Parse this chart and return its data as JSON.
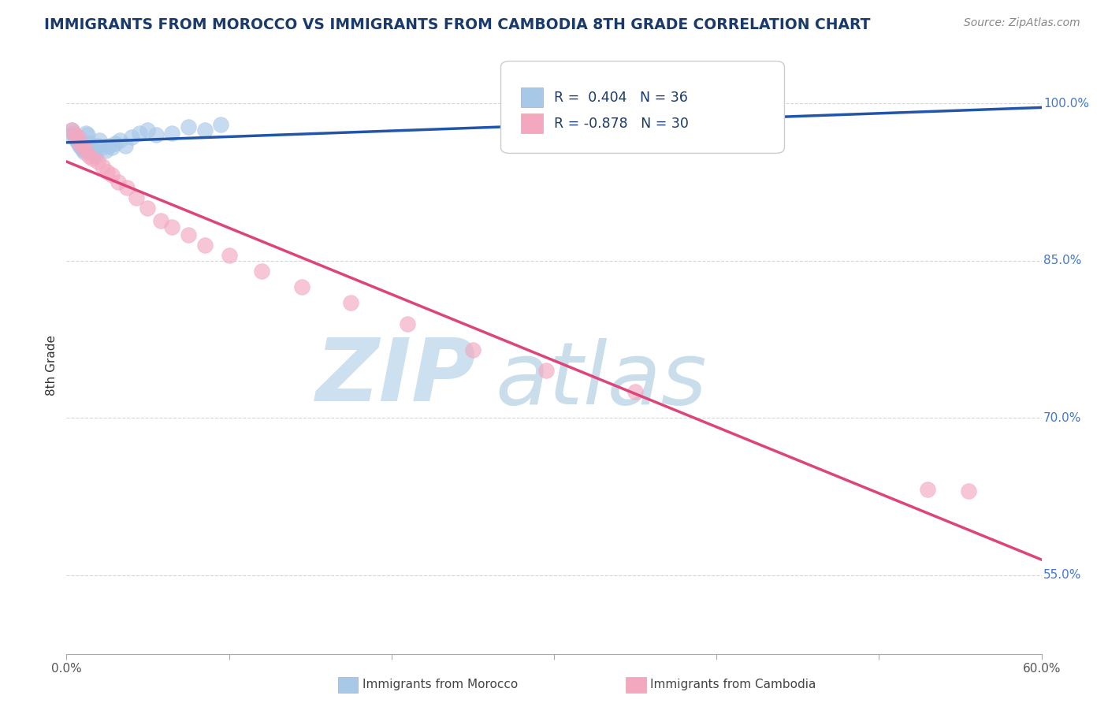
{
  "title": "IMMIGRANTS FROM MOROCCO VS IMMIGRANTS FROM CAMBODIA 8TH GRADE CORRELATION CHART",
  "source_text": "Source: ZipAtlas.com",
  "ylabel": "8th Grade",
  "watermark": "ZIPatlas",
  "x_min": 0.0,
  "x_max": 0.6,
  "y_min": 0.475,
  "y_max": 1.025,
  "y_ticks": [
    0.55,
    0.7,
    0.85,
    1.0
  ],
  "y_tick_labels": [
    "55.0%",
    "70.0%",
    "85.0%",
    "100.0%"
  ],
  "morocco_R": 0.404,
  "morocco_N": 36,
  "cambodia_R": -0.878,
  "cambodia_N": 30,
  "morocco_color": "#a8c8e8",
  "cambodia_color": "#f4a8c0",
  "morocco_edge_color": "#7090c0",
  "cambodia_edge_color": "#e07090",
  "morocco_line_color": "#2255aa",
  "cambodia_line_color": "#dd4477",
  "background_color": "#ffffff",
  "grid_color": "#cccccc",
  "title_color": "#1a3a6b",
  "axis_label_color": "#333333",
  "right_tick_color": "#4477cc",
  "watermark_color": "#cce0f0",
  "morocco_x": [
    0.002,
    0.003,
    0.004,
    0.005,
    0.006,
    0.007,
    0.008,
    0.009,
    0.01,
    0.011,
    0.012,
    0.013,
    0.014,
    0.015,
    0.016,
    0.017,
    0.018,
    0.019,
    0.02,
    0.022,
    0.024,
    0.026,
    0.028,
    0.03,
    0.033,
    0.036,
    0.04,
    0.045,
    0.05,
    0.055,
    0.065,
    0.075,
    0.085,
    0.095,
    0.35,
    0.42
  ],
  "morocco_y": [
    0.97,
    0.975,
    0.972,
    0.968,
    0.965,
    0.963,
    0.96,
    0.958,
    0.956,
    0.954,
    0.972,
    0.97,
    0.962,
    0.958,
    0.954,
    0.952,
    0.95,
    0.96,
    0.965,
    0.958,
    0.955,
    0.96,
    0.958,
    0.962,
    0.965,
    0.96,
    0.968,
    0.972,
    0.975,
    0.97,
    0.972,
    0.978,
    0.975,
    0.98,
    0.985,
    0.978
  ],
  "cambodia_x": [
    0.003,
    0.005,
    0.007,
    0.008,
    0.01,
    0.012,
    0.014,
    0.016,
    0.019,
    0.022,
    0.025,
    0.028,
    0.032,
    0.037,
    0.043,
    0.05,
    0.058,
    0.065,
    0.075,
    0.085,
    0.1,
    0.12,
    0.145,
    0.175,
    0.21,
    0.25,
    0.295,
    0.35,
    0.53,
    0.555
  ],
  "cambodia_y": [
    0.975,
    0.97,
    0.968,
    0.962,
    0.96,
    0.955,
    0.95,
    0.948,
    0.945,
    0.94,
    0.935,
    0.932,
    0.925,
    0.92,
    0.91,
    0.9,
    0.888,
    0.882,
    0.875,
    0.865,
    0.855,
    0.84,
    0.825,
    0.81,
    0.79,
    0.765,
    0.745,
    0.725,
    0.632,
    0.63
  ]
}
